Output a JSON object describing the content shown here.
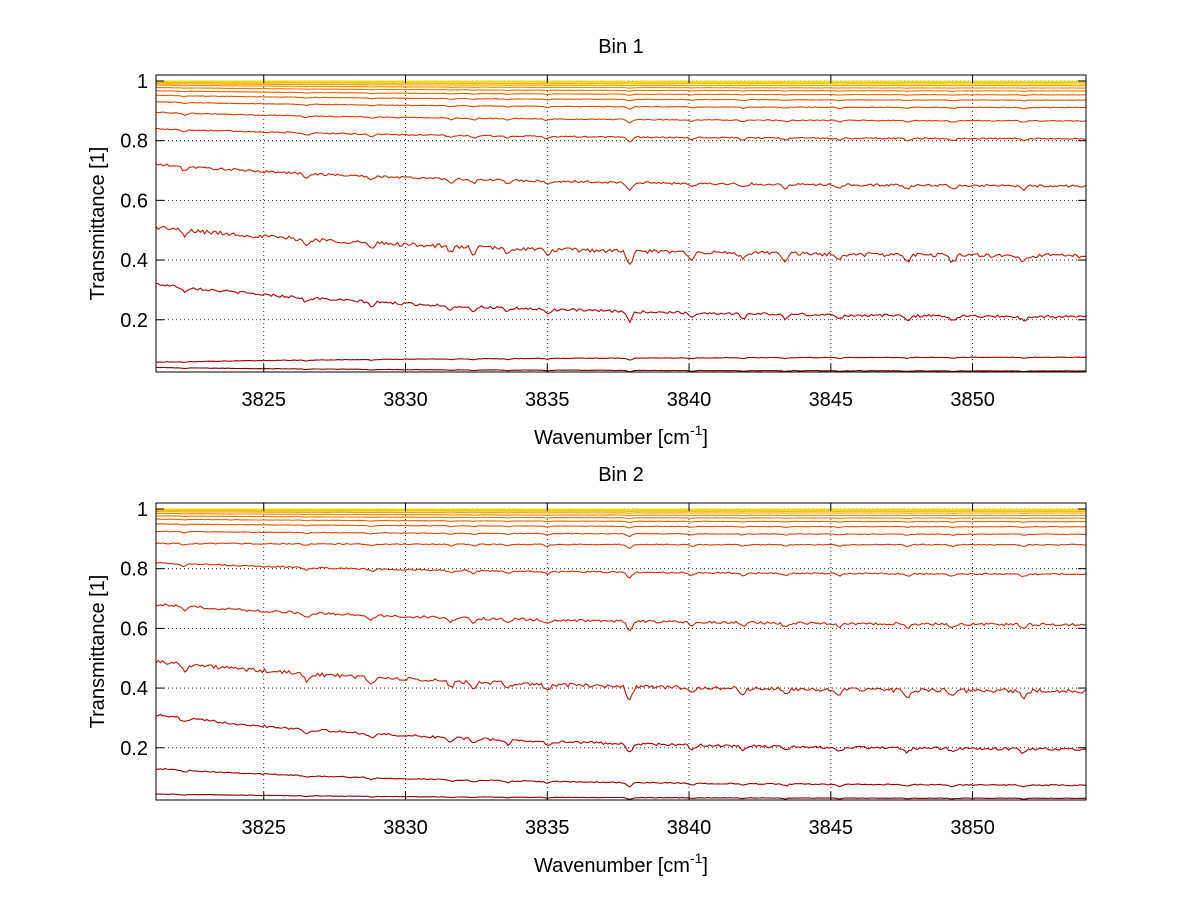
{
  "chart_data": [
    {
      "type": "line",
      "title": "Bin 1",
      "xlabel": "Wavenumber [cm",
      "xlabel_sup": "-1",
      "xlabel_end": "]",
      "ylabel": "Transmittance [1]",
      "xlim": [
        3821.2,
        3854.0
      ],
      "ylim": [
        0.025,
        1.02
      ],
      "xticks": [
        3825,
        3830,
        3835,
        3840,
        3845,
        3850
      ],
      "yticks": [
        0.2,
        0.4,
        0.6,
        0.8,
        1
      ],
      "ytick_labels": [
        "0.2",
        "0.4",
        "0.6",
        "0.8",
        "1"
      ],
      "grid": true,
      "line_start": [
        0.04,
        0.058,
        0.32,
        0.51,
        0.72,
        0.84,
        0.895,
        0.93,
        0.952,
        0.967,
        0.978,
        0.986,
        0.991,
        0.995,
        0.998,
        1.0
      ],
      "line_end": [
        0.028,
        0.075,
        0.205,
        0.41,
        0.645,
        0.805,
        0.865,
        0.91,
        0.935,
        0.953,
        0.966,
        0.976,
        0.984,
        0.99,
        0.995,
        0.999
      ],
      "line_colors": [
        "#800000",
        "#990000",
        "#b30000",
        "#c41a00",
        "#cc2200",
        "#d42e00",
        "#dc3b00",
        "#e04800",
        "#e45700",
        "#e86600",
        "#ec7800",
        "#f08a00",
        "#f4a000",
        "#f6b800",
        "#f2d000",
        "#e8e000"
      ],
      "absorption_lines": [
        3822.2,
        3826.5,
        3828.8,
        3831.6,
        3832.4,
        3833.6,
        3835.0,
        3837.9,
        3840.1,
        3841.9,
        3843.4,
        3845.3,
        3847.7,
        3849.3,
        3851.8
      ]
    },
    {
      "type": "line",
      "title": "Bin 2",
      "xlabel": "Wavenumber [cm",
      "xlabel_sup": "-1",
      "xlabel_end": "]",
      "ylabel": "Transmittance [1]",
      "xlim": [
        3821.2,
        3854.0
      ],
      "ylim": [
        0.025,
        1.02
      ],
      "xticks": [
        3825,
        3830,
        3835,
        3840,
        3845,
        3850
      ],
      "yticks": [
        0.2,
        0.4,
        0.6,
        0.8,
        1
      ],
      "ytick_labels": [
        "0.2",
        "0.4",
        "0.6",
        "0.8",
        "1"
      ],
      "grid": true,
      "line_start": [
        0.045,
        0.13,
        0.31,
        0.49,
        0.68,
        0.82,
        0.885,
        0.925,
        0.95,
        0.966,
        0.977,
        0.985,
        0.991,
        0.995,
        0.998,
        1.0
      ],
      "line_end": [
        0.03,
        0.072,
        0.19,
        0.385,
        0.61,
        0.78,
        0.88,
        0.915,
        0.94,
        0.957,
        0.969,
        0.978,
        0.986,
        0.992,
        0.996,
        0.999
      ],
      "line_colors": [
        "#800000",
        "#990000",
        "#b30000",
        "#c41a00",
        "#cc2200",
        "#d42e00",
        "#dc3b00",
        "#e04800",
        "#e45700",
        "#e86600",
        "#ec7800",
        "#f08a00",
        "#f4a000",
        "#f6b800",
        "#f2d000",
        "#e8e000"
      ],
      "absorption_lines": [
        3822.2,
        3826.5,
        3828.8,
        3831.6,
        3832.4,
        3833.6,
        3835.0,
        3837.9,
        3840.1,
        3841.9,
        3843.4,
        3845.3,
        3847.7,
        3849.3,
        3851.8
      ]
    }
  ]
}
